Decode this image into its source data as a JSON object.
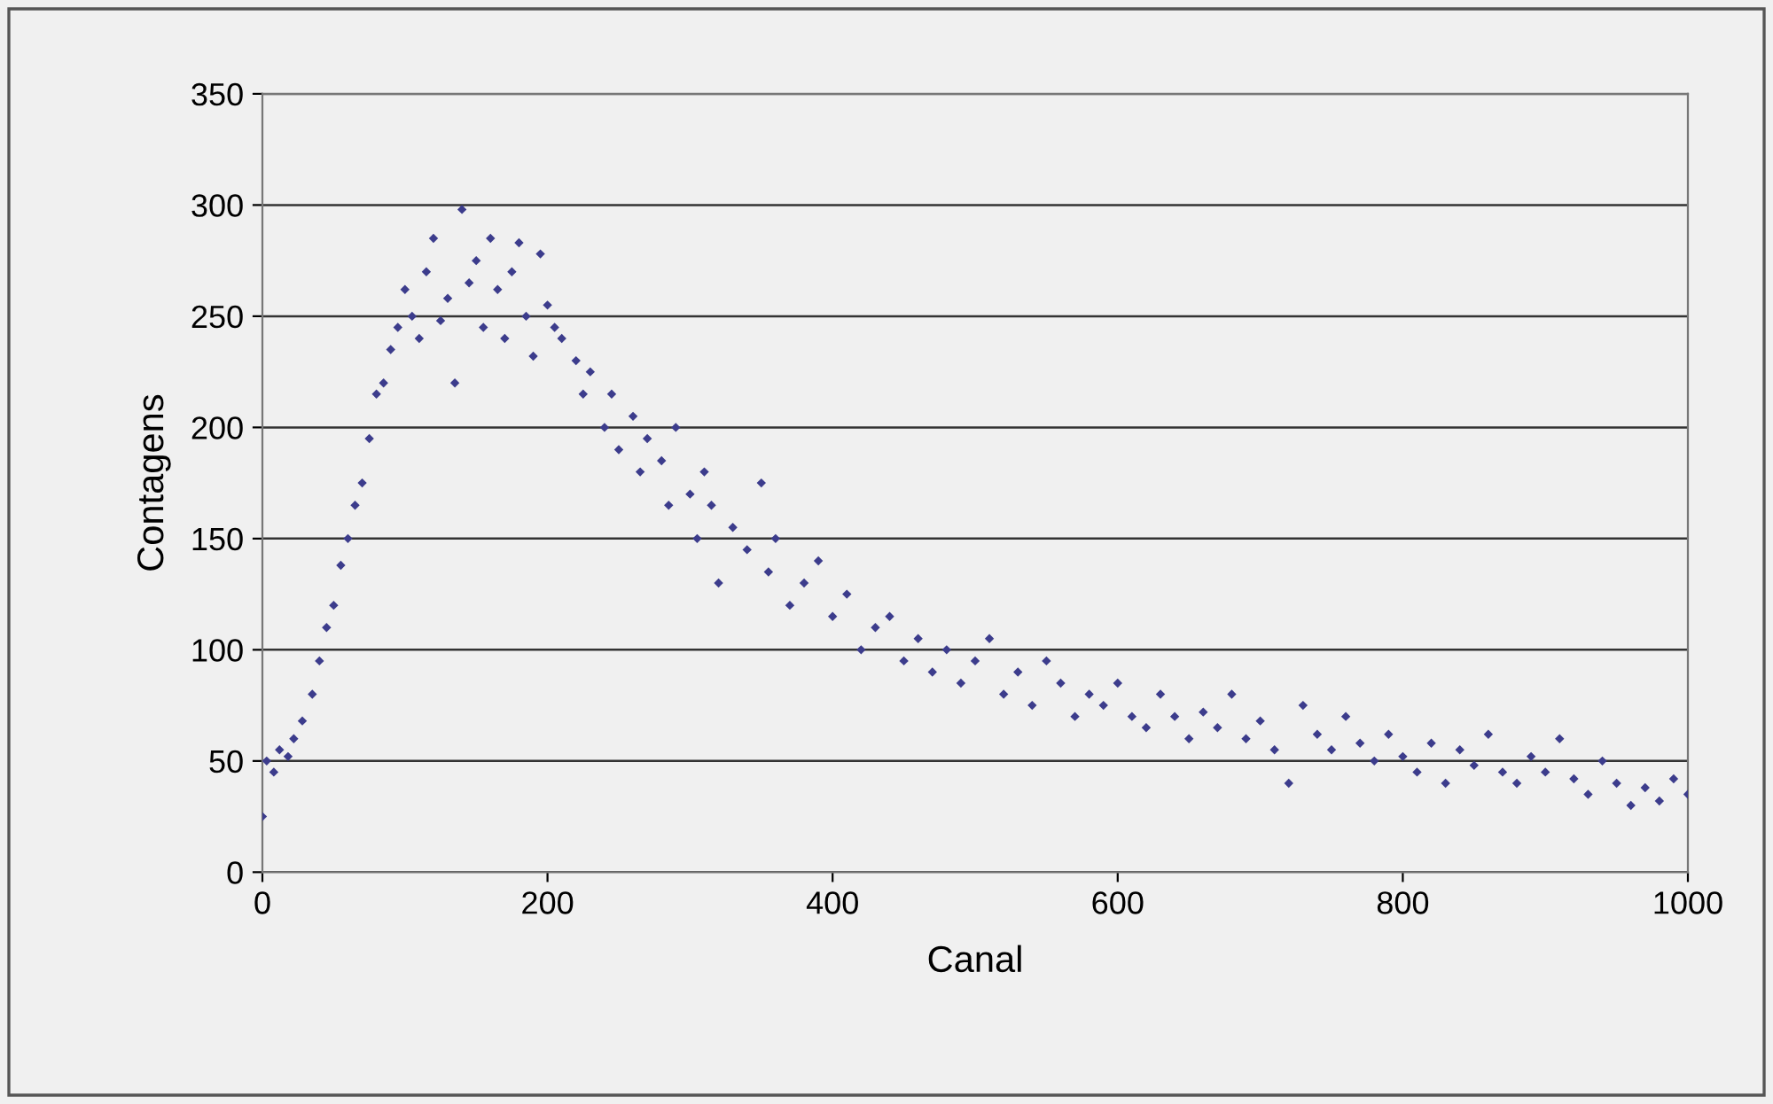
{
  "chart_data": {
    "type": "scatter",
    "xlabel": "Canal",
    "ylabel": "Contagens",
    "xlim": [
      0,
      1000
    ],
    "xticks": [
      0,
      200,
      400,
      600,
      800,
      1000
    ],
    "ylim": [
      0,
      350
    ],
    "yticks": [
      0,
      50,
      100,
      150,
      200,
      250,
      300,
      350
    ],
    "grid": "y",
    "marker": "diamond",
    "series": [
      {
        "color": "#3c3c8c",
        "x": [
          0,
          3,
          8,
          12,
          18,
          22,
          28,
          35,
          40,
          45,
          50,
          55,
          60,
          65,
          70,
          75,
          80,
          85,
          90,
          95,
          100,
          105,
          110,
          115,
          120,
          125,
          130,
          135,
          140,
          145,
          150,
          155,
          160,
          165,
          170,
          175,
          180,
          185,
          190,
          195,
          200,
          205,
          210,
          220,
          225,
          230,
          240,
          245,
          250,
          260,
          265,
          270,
          280,
          285,
          290,
          300,
          305,
          310,
          315,
          320,
          330,
          340,
          350,
          355,
          360,
          370,
          380,
          390,
          400,
          410,
          420,
          430,
          440,
          450,
          460,
          470,
          480,
          490,
          500,
          510,
          520,
          530,
          540,
          550,
          560,
          570,
          580,
          590,
          600,
          610,
          620,
          630,
          640,
          650,
          660,
          670,
          680,
          690,
          700,
          710,
          720,
          730,
          740,
          750,
          760,
          770,
          780,
          790,
          800,
          810,
          820,
          830,
          840,
          850,
          860,
          870,
          880,
          890,
          900,
          910,
          920,
          930,
          940,
          950,
          960,
          970,
          980,
          990,
          1000
        ],
        "values": [
          25,
          50,
          45,
          55,
          52,
          60,
          68,
          80,
          95,
          110,
          120,
          138,
          150,
          165,
          175,
          195,
          215,
          220,
          235,
          245,
          262,
          250,
          240,
          270,
          285,
          248,
          258,
          220,
          298,
          265,
          275,
          245,
          285,
          262,
          240,
          270,
          283,
          250,
          232,
          278,
          255,
          245,
          240,
          230,
          215,
          225,
          200,
          215,
          190,
          205,
          180,
          195,
          185,
          165,
          200,
          170,
          150,
          180,
          165,
          130,
          155,
          145,
          175,
          135,
          150,
          120,
          130,
          140,
          115,
          125,
          100,
          110,
          115,
          95,
          105,
          90,
          100,
          85,
          95,
          105,
          80,
          90,
          75,
          95,
          85,
          70,
          80,
          75,
          85,
          70,
          65,
          80,
          70,
          60,
          72,
          65,
          80,
          60,
          68,
          55,
          40,
          75,
          62,
          55,
          70,
          58,
          50,
          62,
          52,
          45,
          58,
          40,
          55,
          48,
          62,
          45,
          40,
          52,
          45,
          60,
          42,
          35,
          50,
          40,
          30,
          38,
          32,
          42,
          35
        ]
      }
    ]
  }
}
